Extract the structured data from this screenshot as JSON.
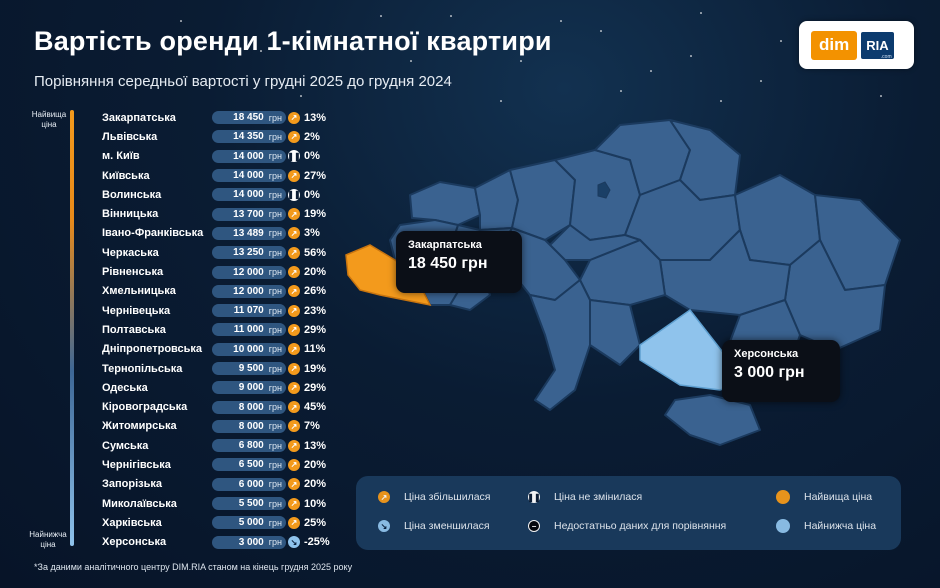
{
  "header": {
    "title": "Вартість оренди 1-кімнатної квартири",
    "subtitle": "Порівняння середньої вартості у грудні 2025 до грудня 2024"
  },
  "logo": {
    "part1": "dim",
    "part2": "RIA",
    "part3": ".com"
  },
  "scale": {
    "top_label": "Найвища ціна",
    "bottom_label": "Найнижча ціна"
  },
  "currency": "грн",
  "regions": [
    {
      "name": "Закарпатська",
      "value": "18 450",
      "trend": "up",
      "change": "13%"
    },
    {
      "name": "Львівська",
      "value": "14 350",
      "trend": "up",
      "change": "2%"
    },
    {
      "name": "м. Київ",
      "value": "14 000",
      "trend": "eq",
      "change": "0%"
    },
    {
      "name": "Київська",
      "value": "14 000",
      "trend": "up",
      "change": "27%"
    },
    {
      "name": "Волинська",
      "value": "14 000",
      "trend": "eq",
      "change": "0%"
    },
    {
      "name": "Вінницька",
      "value": "13 700",
      "trend": "up",
      "change": "19%"
    },
    {
      "name": "Івано-Франківська",
      "value": "13 489",
      "trend": "up",
      "change": "3%"
    },
    {
      "name": "Черкаська",
      "value": "13 250",
      "trend": "up",
      "change": "56%"
    },
    {
      "name": "Рівненська",
      "value": "12 000",
      "trend": "up",
      "change": "20%"
    },
    {
      "name": "Хмельницька",
      "value": "12 000",
      "trend": "up",
      "change": "26%"
    },
    {
      "name": "Чернівецька",
      "value": "11 070",
      "trend": "up",
      "change": "23%"
    },
    {
      "name": "Полтавська",
      "value": "11 000",
      "trend": "up",
      "change": "29%"
    },
    {
      "name": "Дніпропетровська",
      "value": "10 000",
      "trend": "up",
      "change": "11%"
    },
    {
      "name": "Тернопільська",
      "value": "9 500",
      "trend": "up",
      "change": "19%"
    },
    {
      "name": "Одеська",
      "value": "9 000",
      "trend": "up",
      "change": "29%"
    },
    {
      "name": "Кіровоградська",
      "value": "8 000",
      "trend": "up",
      "change": "45%"
    },
    {
      "name": "Житомирська",
      "value": "8 000",
      "trend": "up",
      "change": "7%"
    },
    {
      "name": "Сумська",
      "value": "6 800",
      "trend": "up",
      "change": "13%"
    },
    {
      "name": "Чернігівська",
      "value": "6 500",
      "trend": "up",
      "change": "20%"
    },
    {
      "name": "Запорізька",
      "value": "6 000",
      "trend": "up",
      "change": "20%"
    },
    {
      "name": "Миколаївська",
      "value": "5 500",
      "trend": "up",
      "change": "10%"
    },
    {
      "name": "Харківська",
      "value": "5 000",
      "trend": "up",
      "change": "25%"
    },
    {
      "name": "Херсонська",
      "value": "3 000",
      "trend": "down",
      "change": "-25%"
    }
  ],
  "callouts": {
    "highest": {
      "name": "Закарпатська",
      "value": "18 450 грн"
    },
    "lowest": {
      "name": "Херсонська",
      "value": "3 000 грн"
    }
  },
  "legend": {
    "up": "Ціна збільшилася",
    "down": "Ціна зменшилася",
    "eq": "Ціна не змінилася",
    "nodata": "Недостатньо даних для порівняння",
    "highest": "Найвища ціна",
    "lowest": "Найнижча ціна"
  },
  "colors": {
    "map_fill": "#3a6290",
    "map_stroke": "#1b3a5e",
    "highest": "#f39a1c",
    "lowest": "#8fc3ec",
    "capital": "#1a3f66"
  },
  "footnote": "*За даними аналітичного центру DIM.RIA станом на кінець грудня 2025 року"
}
